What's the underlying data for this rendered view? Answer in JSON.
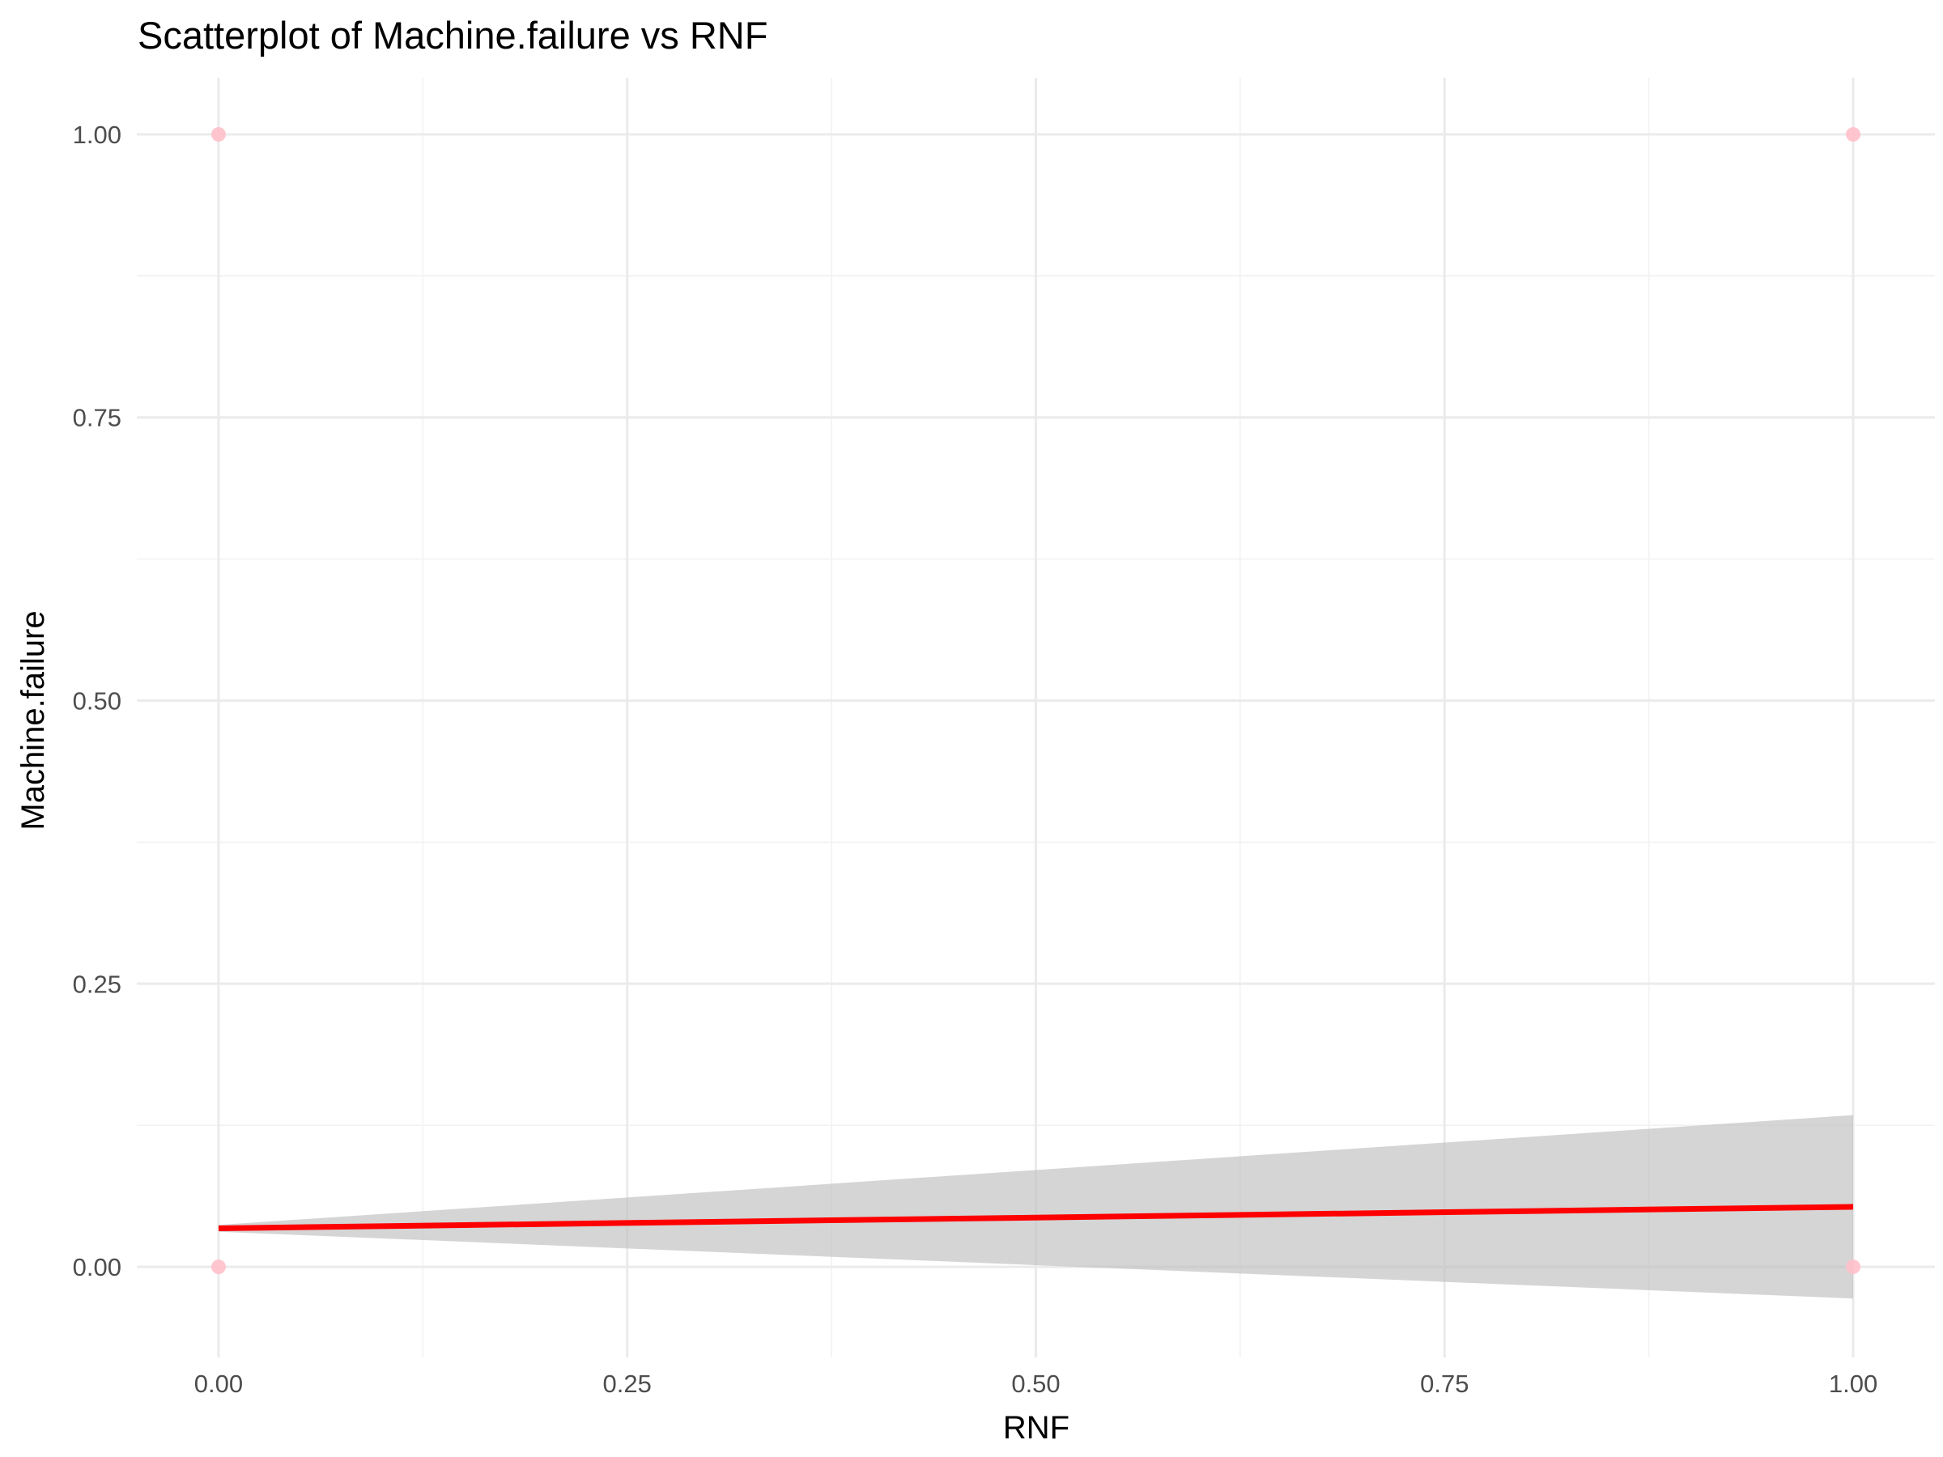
{
  "chart_data": {
    "type": "scatter",
    "title": "Scatterplot of Machine.failure vs RNF",
    "xlabel": "RNF",
    "ylabel": "Machine.failure",
    "xlim": [
      -0.05,
      1.05
    ],
    "ylim": [
      -0.08,
      1.05
    ],
    "x_ticks": [
      0.0,
      0.25,
      0.5,
      0.75,
      1.0
    ],
    "x_tick_labels": [
      "0.00",
      "0.25",
      "0.50",
      "0.75",
      "1.00"
    ],
    "y_ticks": [
      0.0,
      0.25,
      0.5,
      0.75,
      1.0
    ],
    "y_tick_labels": [
      "0.00",
      "0.25",
      "0.50",
      "0.75",
      "1.00"
    ],
    "grid": true,
    "points": [
      {
        "x": 0,
        "y": 1
      },
      {
        "x": 1,
        "y": 1
      },
      {
        "x": 0,
        "y": 0
      },
      {
        "x": 1,
        "y": 0
      }
    ],
    "point_color": "#ffc0cb",
    "fit_line": {
      "x": [
        0,
        1
      ],
      "y": [
        0.034,
        0.053
      ],
      "color": "#ff0000"
    },
    "confidence_band": {
      "x": [
        0,
        1
      ],
      "lower": [
        0.031,
        -0.028
      ],
      "upper": [
        0.037,
        0.134
      ],
      "color": "#bfbfbf"
    }
  }
}
